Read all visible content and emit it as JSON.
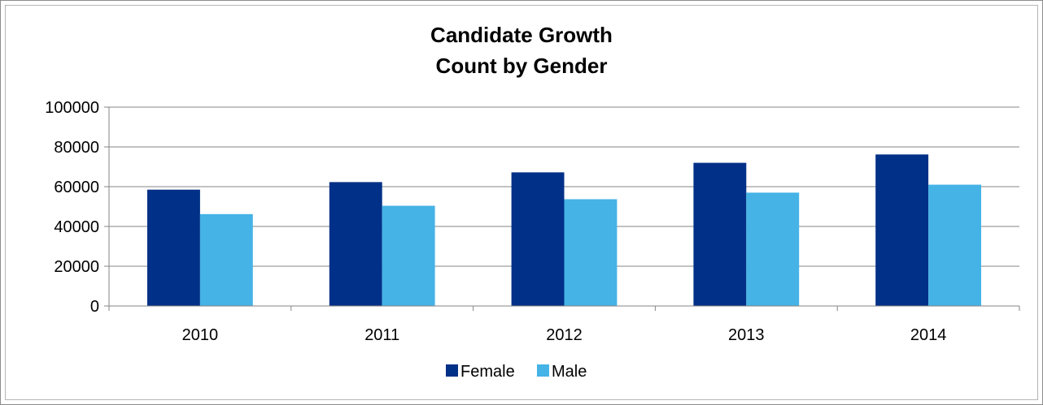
{
  "chart_data": {
    "type": "bar",
    "title_lines": [
      "Candidate Growth",
      "Count by Gender"
    ],
    "xlabel": "",
    "ylabel": "",
    "categories": [
      "2010",
      "2011",
      "2012",
      "2013",
      "2014"
    ],
    "series": [
      {
        "name": "Female",
        "color": "#003087",
        "values": [
          58500,
          62300,
          67200,
          72000,
          76200
        ]
      },
      {
        "name": "Male",
        "color": "#45b3e6",
        "values": [
          46200,
          50400,
          53700,
          57000,
          61000
        ]
      }
    ],
    "ylim": [
      0,
      100000
    ],
    "yticks": [
      0,
      20000,
      40000,
      60000,
      80000,
      100000
    ],
    "grid": true,
    "legend_position": "bottom"
  }
}
